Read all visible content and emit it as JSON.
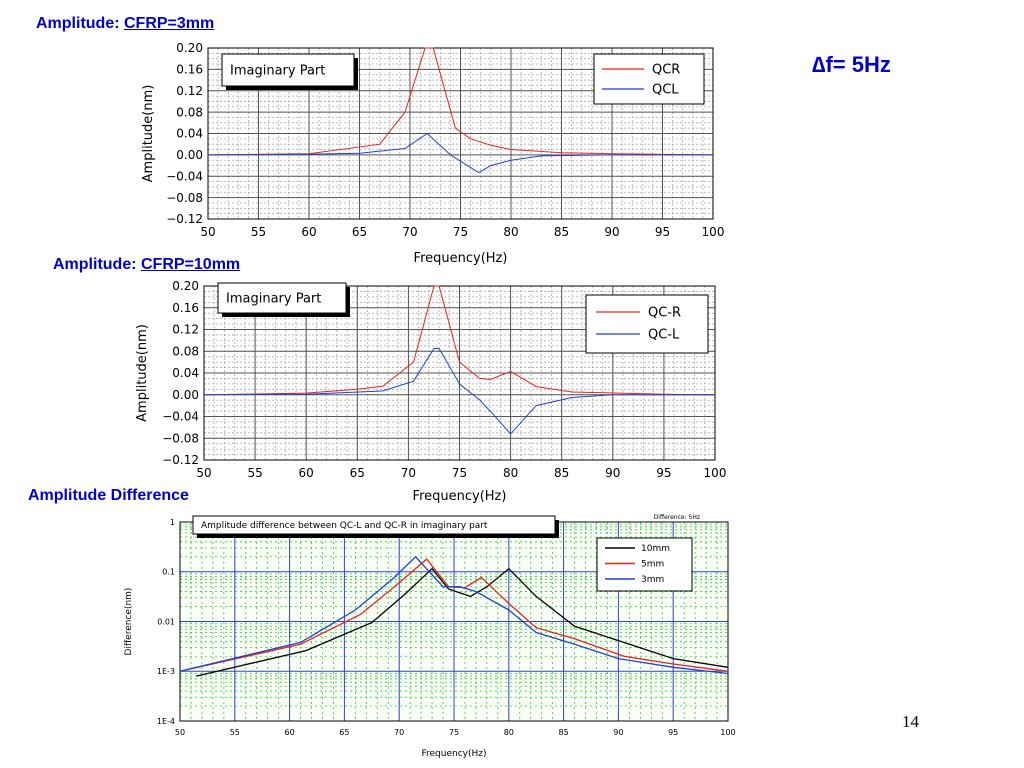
{
  "slide": {
    "label1_prefix": "Amplitude: ",
    "label1_link": "CFRP=3mm",
    "label2_prefix": "Amplitude: ",
    "label2_link": "CFRP=10mm",
    "label3": "Amplitude Difference",
    "delta_f": "∆f= 5Hz",
    "page_number": "14"
  },
  "colors": {
    "red": "#e8231a",
    "blue": "#1f3fd8",
    "black": "#000000",
    "label_blue": "#0000cc"
  },
  "chart_data": [
    {
      "type": "line",
      "title": "Imaginary Part",
      "xlabel": "Frequency(Hz)",
      "ylabel": "Amplitude(nm)",
      "xlim": [
        50,
        100
      ],
      "ylim": [
        -0.12,
        0.2
      ],
      "xticks": [
        "50",
        "55",
        "60",
        "65",
        "70",
        "75",
        "80",
        "85",
        "90",
        "95",
        "100"
      ],
      "yticks": [
        "0.20",
        "0.16",
        "0.12",
        "0.08",
        "0.04",
        "0.00",
        "−0.04",
        "−0.08",
        "−0.12"
      ],
      "legend": "top-right",
      "grid": true,
      "series": [
        {
          "name": "QCR",
          "color": "#e8231a",
          "x": [
            50,
            60,
            67,
            69.5,
            71.5,
            72.3,
            74.5,
            76,
            78,
            80,
            85,
            90,
            100
          ],
          "y": [
            0,
            0.002,
            0.02,
            0.08,
            0.2,
            0.2,
            0.05,
            0.03,
            0.018,
            0.01,
            0.004,
            0.002,
            0
          ]
        },
        {
          "name": "QCL",
          "color": "#1f3fd8",
          "x": [
            50,
            60,
            65,
            69.5,
            71.7,
            74,
            76.8,
            78,
            80,
            83,
            90,
            100
          ],
          "y": [
            0,
            0.001,
            0.003,
            0.012,
            0.04,
            0.0,
            -0.033,
            -0.02,
            -0.01,
            -0.002,
            0,
            0
          ]
        }
      ]
    },
    {
      "type": "line",
      "title": "Imaginary Part",
      "xlabel": "Frequency(Hz)",
      "ylabel": "Amplitude(nm)",
      "xlim": [
        50,
        100
      ],
      "ylim": [
        -0.12,
        0.2
      ],
      "xticks": [
        "50",
        "55",
        "60",
        "65",
        "70",
        "75",
        "80",
        "85",
        "90",
        "95",
        "100"
      ],
      "yticks": [
        "0.20",
        "0.16",
        "0.12",
        "0.08",
        "0.04",
        "0.00",
        "−0.04",
        "−0.08",
        "−0.12"
      ],
      "legend": "top-right",
      "grid": true,
      "series": [
        {
          "name": "QC-R",
          "color": "#e8231a",
          "x": [
            50,
            60,
            65,
            67.5,
            70.5,
            72.5,
            73,
            75,
            77,
            78,
            80,
            82.5,
            86,
            95,
            100
          ],
          "y": [
            0,
            0.003,
            0.01,
            0.016,
            0.06,
            0.2,
            0.2,
            0.06,
            0.03,
            0.028,
            0.043,
            0.015,
            0.005,
            0.001,
            0
          ]
        },
        {
          "name": "QC-L",
          "color": "#1f3fd8",
          "x": [
            50,
            60,
            67.5,
            70.5,
            72.5,
            73,
            75,
            77,
            78,
            80,
            82.5,
            86,
            90,
            95,
            100
          ],
          "y": [
            0,
            0.001,
            0.007,
            0.025,
            0.085,
            0.085,
            0.02,
            -0.01,
            -0.03,
            -0.072,
            -0.02,
            -0.005,
            0,
            0,
            0
          ]
        }
      ]
    },
    {
      "type": "line",
      "title": "Amplitude difference between QC-L and QC-R in imaginary part",
      "subtitle": "Difference: 5Hz",
      "xlabel": "Frequency(Hz)",
      "ylabel": "Difference(nm)",
      "xlim": [
        50,
        100
      ],
      "ylim": [
        0.0001,
        1
      ],
      "log_y": true,
      "xticks": [
        "50",
        "55",
        "60",
        "65",
        "70",
        "75",
        "80",
        "85",
        "90",
        "95",
        "100"
      ],
      "yticks": [
        "1",
        "0.1",
        "0.01",
        "1E-3",
        "1E-4"
      ],
      "legend": "top-right",
      "grid": true,
      "series": [
        {
          "name": "10mm",
          "color": "#000000",
          "x": [
            51.5,
            61.5,
            67.5,
            70.5,
            73,
            74.5,
            76.5,
            78,
            80,
            82.5,
            86,
            91,
            95,
            100
          ],
          "y": [
            0.0008,
            0.0026,
            0.0095,
            0.035,
            0.115,
            0.045,
            0.032,
            0.05,
            0.115,
            0.032,
            0.008,
            0.0035,
            0.0018,
            0.0012
          ]
        },
        {
          "name": "5mm",
          "color": "#e8231a",
          "x": [
            50,
            61,
            66.5,
            70,
            72.5,
            74.5,
            76,
            77.5,
            80,
            82.5,
            86,
            90.5,
            95,
            100
          ],
          "y": [
            0.001,
            0.0035,
            0.014,
            0.06,
            0.18,
            0.05,
            0.048,
            0.077,
            0.023,
            0.0075,
            0.0045,
            0.002,
            0.0014,
            0.001
          ]
        },
        {
          "name": "3mm",
          "color": "#1f3fd8",
          "x": [
            50,
            61,
            66,
            69.5,
            71.5,
            74,
            75.5,
            77,
            80,
            82.5,
            86,
            90,
            95,
            100
          ],
          "y": [
            0.001,
            0.0038,
            0.017,
            0.075,
            0.2,
            0.05,
            0.05,
            0.04,
            0.017,
            0.006,
            0.0035,
            0.0018,
            0.0012,
            0.0009
          ]
        }
      ]
    }
  ]
}
